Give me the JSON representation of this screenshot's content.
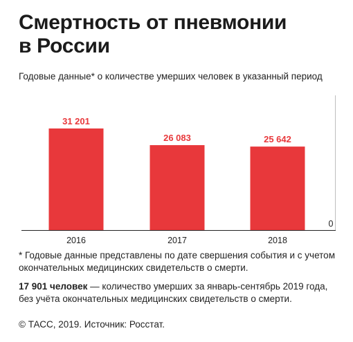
{
  "header": {
    "title_line1": "Смертность от пневмонии",
    "title_line2": "в России",
    "subtitle": "Годовые данные* о количестве умерших человек в указанный период"
  },
  "chart_data": {
    "type": "bar",
    "categories": [
      "2016",
      "2017",
      "2018"
    ],
    "values": [
      31201,
      26083,
      25642
    ],
    "value_labels": [
      "31 201",
      "26 083",
      "25 642"
    ],
    "ylim": [
      0,
      40100
    ],
    "y_ticks": [
      "0"
    ],
    "grid": false,
    "bar_color": "#e8383b"
  },
  "footer": {
    "note": "* Годовые данные представлены по дате свершения события и с учетом окончательных медицинских свидетельств о смерти.",
    "fact_bold": "17 901 человек",
    "fact_rest": " — количество умерших за январь-сентябрь 2019 года, без учёта окончательных медицинских свидетельств о смерти.",
    "source": "© ТАСС, 2019. Источник: Росстат."
  }
}
